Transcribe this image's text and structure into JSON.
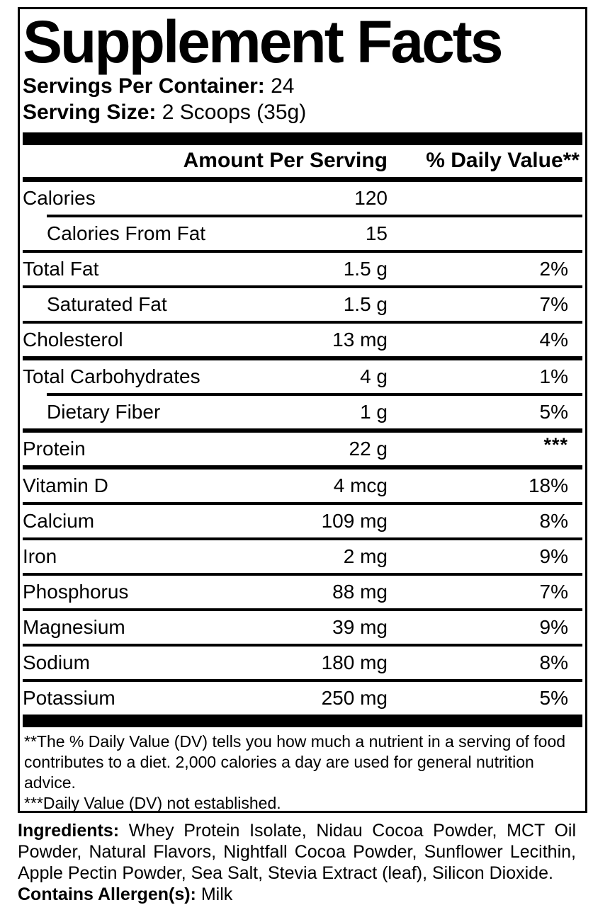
{
  "title": "Supplement Facts",
  "servings": {
    "label": "Servings Per Container:",
    "value": "24"
  },
  "serving_size": {
    "label": "Serving Size:",
    "value": "2 Scoops (35g)"
  },
  "table": {
    "header": {
      "amount": "Amount Per Serving",
      "dv": "% Daily Value**"
    },
    "rows": [
      {
        "name": "Calories",
        "amount": "120",
        "dv": "",
        "indent": false,
        "sep_before": "none"
      },
      {
        "name": "Calories From Fat",
        "amount": "15",
        "dv": "",
        "indent": true,
        "sep_before": "inset"
      },
      {
        "name": "Total Fat",
        "amount": "1.5 g",
        "dv": "2%",
        "indent": false,
        "sep_before": "full"
      },
      {
        "name": "Saturated Fat",
        "amount": "1.5 g",
        "dv": "7%",
        "indent": true,
        "sep_before": "full"
      },
      {
        "name": "Cholesterol",
        "amount": "13 mg",
        "dv": "4%",
        "indent": false,
        "sep_before": "full"
      },
      {
        "name": "Total Carbohydrates",
        "amount": "4 g",
        "dv": "1%",
        "indent": false,
        "sep_before": "thick"
      },
      {
        "name": "Dietary Fiber",
        "amount": "1 g",
        "dv": "5%",
        "indent": true,
        "sep_before": "inset"
      },
      {
        "name": "Protein",
        "amount": "22 g",
        "dv": "***",
        "indent": false,
        "sep_before": "thick",
        "dv_super": true
      },
      {
        "name": "Vitamin D",
        "amount": "4 mcg",
        "dv": "18%",
        "indent": false,
        "sep_before": "thick"
      },
      {
        "name": "Calcium",
        "amount": "109 mg",
        "dv": "8%",
        "indent": false,
        "sep_before": "full"
      },
      {
        "name": "Iron",
        "amount": "2 mg",
        "dv": "9%",
        "indent": false,
        "sep_before": "full"
      },
      {
        "name": "Phosphorus",
        "amount": "88 mg",
        "dv": "7%",
        "indent": false,
        "sep_before": "full"
      },
      {
        "name": "Magnesium",
        "amount": "39 mg",
        "dv": "9%",
        "indent": false,
        "sep_before": "full"
      },
      {
        "name": "Sodium",
        "amount": "180 mg",
        "dv": "8%",
        "indent": false,
        "sep_before": "full"
      },
      {
        "name": "Potassium",
        "amount": "250 mg",
        "dv": "5%",
        "indent": false,
        "sep_before": "full"
      }
    ]
  },
  "footnotes": [
    "**The % Daily Value (DV) tells you how much a nutrient in a serving of food contributes to a diet. 2,000 calories a day are used for general nutrition advice.",
    "***Daily Value (DV) not established."
  ],
  "ingredients": {
    "label": "Ingredients:",
    "text": "Whey Protein Isolate, Nidau Cocoa Powder, MCT Oil Powder, Natural Flavors, Nightfall Cocoa Powder, Sunflower Lecithin, Apple Pectin Powder, Sea Salt, Stevia Extract (leaf), Silicon Dioxide."
  },
  "allergens": {
    "label": "Contains Allergen(s):",
    "value": "Milk"
  },
  "colors": {
    "text": "#000000",
    "background": "#ffffff"
  }
}
